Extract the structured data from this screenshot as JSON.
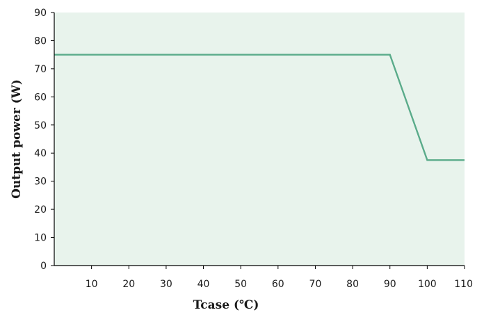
{
  "chart_data": {
    "type": "line",
    "title": "",
    "xlabel": "Tcase (℃)",
    "ylabel": "Output power (W)",
    "xlim": [
      0,
      110
    ],
    "ylim": [
      0,
      90
    ],
    "x_ticks": [
      10,
      20,
      30,
      40,
      50,
      60,
      70,
      80,
      90,
      100,
      110
    ],
    "y_ticks": [
      0,
      10,
      20,
      30,
      40,
      50,
      60,
      70,
      80,
      90
    ],
    "grid": false,
    "legend": "none",
    "series": [
      {
        "x": [
          0,
          90,
          100,
          110
        ],
        "y": [
          75,
          75,
          37.5,
          37.5
        ]
      }
    ],
    "colors": {
      "plot_background": "#e8f3ec",
      "line": "#5aab8a",
      "axis": "#000000"
    }
  }
}
